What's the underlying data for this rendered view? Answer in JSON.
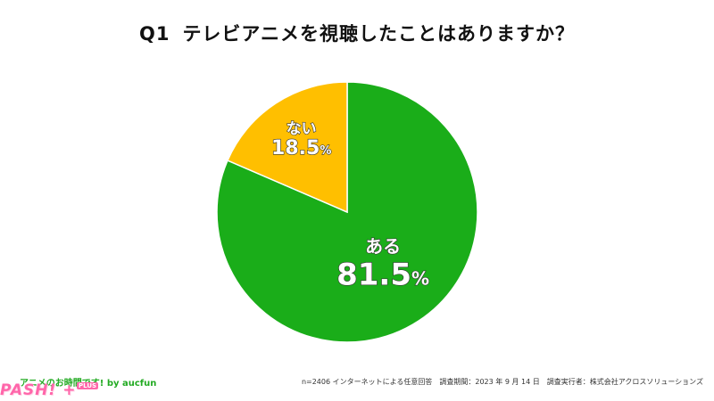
{
  "title": {
    "question_no": "Q1",
    "text": "テレビアニメを視聴したことはありますか？"
  },
  "chart_data": {
    "type": "pie",
    "slices": [
      {
        "label": "ある",
        "value": 81.5,
        "display": "81.5",
        "color": "#1aad19"
      },
      {
        "label": "ない",
        "value": 18.5,
        "display": "18.5",
        "color": "#ffbf00"
      }
    ],
    "unit": "%"
  },
  "footer": {
    "brand": "アニメのお時間です! by aucfun",
    "note": "n=2406 インターネットによる任意回答　調査期間：2023 年 9 月 14 日　調査実行者：株式会社アクロスソリューションズ"
  },
  "logo": {
    "text": "PASH! +",
    "sub": "PLUS"
  }
}
